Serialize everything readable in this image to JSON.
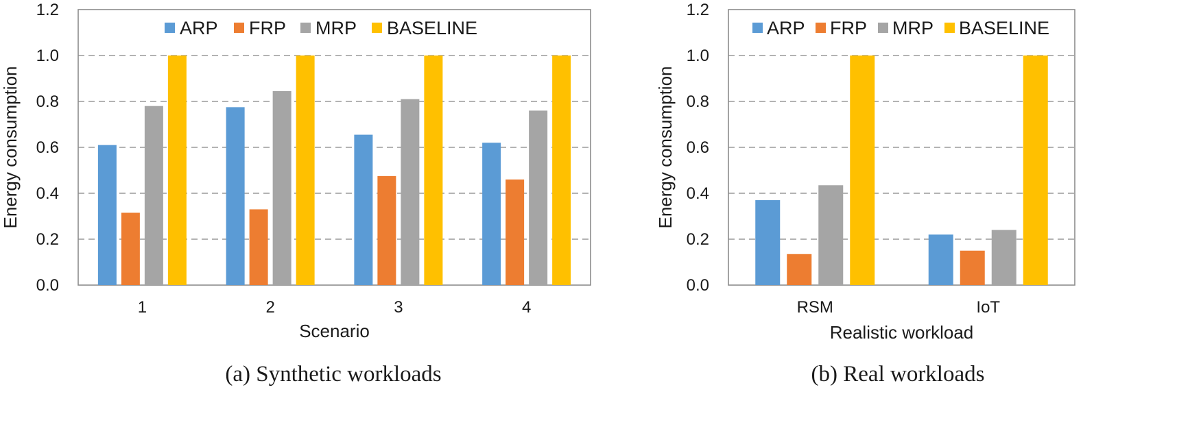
{
  "colors": {
    "ARP": "#5b9bd5",
    "FRP": "#ed7d31",
    "MRP": "#a5a5a5",
    "BASELINE": "#ffc000"
  },
  "chart_data": [
    {
      "type": "bar",
      "caption": "(a) Synthetic workloads",
      "xlabel": "Scenario",
      "ylabel": "Energy consumption",
      "ylim": [
        0,
        1.2
      ],
      "yticks": [
        "0.0",
        "0.2",
        "0.4",
        "0.6",
        "0.8",
        "1.0",
        "1.2"
      ],
      "grid": true,
      "legend_position": "top",
      "categories": [
        "1",
        "2",
        "3",
        "4"
      ],
      "series": [
        {
          "name": "ARP",
          "values": [
            0.61,
            0.775,
            0.655,
            0.62
          ]
        },
        {
          "name": "FRP",
          "values": [
            0.315,
            0.33,
            0.475,
            0.46
          ]
        },
        {
          "name": "MRP",
          "values": [
            0.78,
            0.845,
            0.81,
            0.76
          ]
        },
        {
          "name": "BASELINE",
          "values": [
            1.0,
            1.0,
            1.0,
            1.0
          ]
        }
      ]
    },
    {
      "type": "bar",
      "caption": "(b) Real workloads",
      "xlabel": "Realistic workload",
      "ylabel": "Energy consumption",
      "ylim": [
        0,
        1.2
      ],
      "yticks": [
        "0.0",
        "0.2",
        "0.4",
        "0.6",
        "0.8",
        "1.0",
        "1.2"
      ],
      "grid": true,
      "legend_position": "top",
      "categories": [
        "RSM",
        "IoT"
      ],
      "series": [
        {
          "name": "ARP",
          "values": [
            0.37,
            0.22
          ]
        },
        {
          "name": "FRP",
          "values": [
            0.135,
            0.15
          ]
        },
        {
          "name": "MRP",
          "values": [
            0.435,
            0.24
          ]
        },
        {
          "name": "BASELINE",
          "values": [
            1.0,
            1.0
          ]
        }
      ]
    }
  ]
}
